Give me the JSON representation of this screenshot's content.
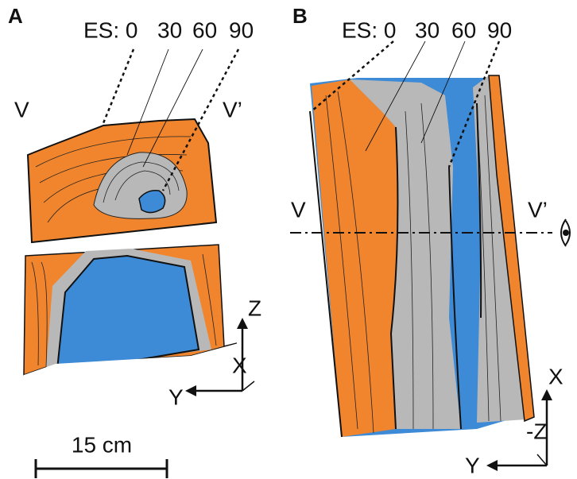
{
  "panels": [
    {
      "label": "A",
      "es_label": "ES: 0",
      "es_values": [
        "30",
        "60",
        "90"
      ],
      "section_labels": [
        "V",
        "V’"
      ],
      "axes": [
        "Z",
        "X",
        "Y"
      ],
      "scale_bar": "15 cm"
    },
    {
      "label": "B",
      "es_label": "ES: 0",
      "es_values": [
        "30",
        "60",
        "90"
      ],
      "section_labels": [
        "V",
        "V’"
      ],
      "axes": [
        "X",
        "-Z",
        "Y"
      ]
    }
  ]
}
